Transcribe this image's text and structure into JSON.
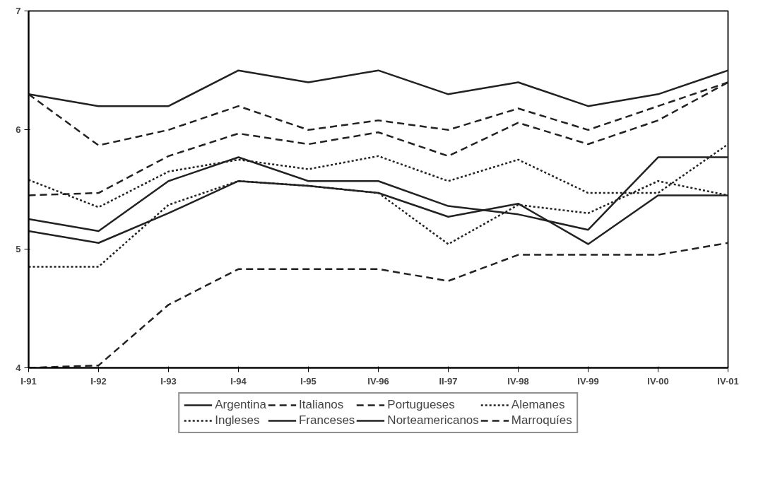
{
  "chart_data": {
    "type": "line",
    "categories": [
      "I-91",
      "I-92",
      "I-93",
      "I-94",
      "I-95",
      "IV-96",
      "II-97",
      "IV-98",
      "IV-99",
      "IV-00",
      "IV-01"
    ],
    "ylim": [
      4,
      7
    ],
    "yticks": [
      4,
      5,
      6,
      7
    ],
    "grid": false,
    "legend": "bottom",
    "marker": "none",
    "series": [
      {
        "name": "Argentina",
        "color": "#222222",
        "line_style": "solid",
        "values": [
          6.3,
          6.2,
          6.2,
          6.5,
          6.4,
          6.5,
          6.3,
          6.4,
          6.2,
          6.3,
          6.5
        ]
      },
      {
        "name": "Italianos",
        "color": "#222222",
        "line_style": "dashed",
        "values": [
          6.3,
          5.87,
          6.0,
          6.2,
          6.0,
          6.08,
          6.0,
          6.18,
          6.0,
          6.2,
          6.4
        ]
      },
      {
        "name": "Portugueses",
        "color": "#222222",
        "line_style": "dashed",
        "values": [
          5.45,
          5.47,
          5.78,
          5.97,
          5.88,
          5.98,
          5.78,
          6.06,
          5.88,
          6.08,
          6.4
        ]
      },
      {
        "name": "Alemanes",
        "color": "#222222",
        "line_style": "dotted",
        "values": [
          5.58,
          5.35,
          5.65,
          5.75,
          5.67,
          5.78,
          5.57,
          5.75,
          5.47,
          5.47,
          5.88
        ]
      },
      {
        "name": "Ingleses",
        "color": "#222222",
        "line_style": "dotted",
        "values": [
          4.85,
          4.85,
          5.37,
          5.57,
          5.53,
          5.47,
          5.04,
          5.37,
          5.3,
          5.57,
          5.45
        ]
      },
      {
        "name": "Franceses",
        "color": "#222222",
        "line_style": "solid",
        "values": [
          5.25,
          5.15,
          5.57,
          5.77,
          5.57,
          5.57,
          5.36,
          5.29,
          5.16,
          5.77,
          5.77
        ]
      },
      {
        "name": "Norteamericanos",
        "color": "#222222",
        "line_style": "solid",
        "values": [
          5.15,
          5.05,
          5.3,
          5.57,
          5.53,
          5.47,
          5.27,
          5.38,
          5.04,
          5.45,
          5.45
        ]
      },
      {
        "name": "Marroquíes",
        "color": "#222222",
        "line_style": "dashed",
        "values": [
          4.0,
          4.02,
          4.53,
          4.83,
          4.83,
          4.83,
          4.73,
          4.95,
          4.95,
          4.95,
          5.05
        ]
      }
    ]
  }
}
